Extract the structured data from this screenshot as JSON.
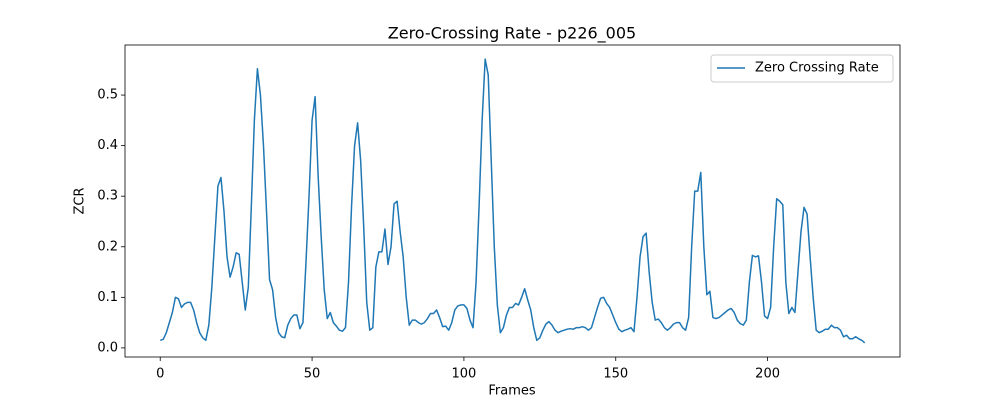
{
  "chart_data": {
    "type": "line",
    "title": "Zero-Crossing Rate - p226_005",
    "x_label": "Frames",
    "y_label": "ZCR",
    "x": [
      0,
      1,
      2,
      3,
      4,
      5,
      6,
      7,
      8,
      9,
      10,
      11,
      12,
      13,
      14,
      15,
      16,
      17,
      18,
      19,
      20,
      21,
      22,
      23,
      24,
      25,
      26,
      27,
      28,
      29,
      30,
      31,
      32,
      33,
      34,
      35,
      36,
      37,
      38,
      39,
      40,
      41,
      42,
      43,
      44,
      45,
      46,
      47,
      48,
      49,
      50,
      51,
      52,
      53,
      54,
      55,
      56,
      57,
      58,
      59,
      60,
      61,
      62,
      63,
      64,
      65,
      66,
      67,
      68,
      69,
      70,
      71,
      72,
      73,
      74,
      75,
      76,
      77,
      78,
      79,
      80,
      81,
      82,
      83,
      84,
      85,
      86,
      87,
      88,
      89,
      90,
      91,
      92,
      93,
      94,
      95,
      96,
      97,
      98,
      99,
      100,
      101,
      102,
      103,
      104,
      105,
      106,
      107,
      108,
      109,
      110,
      111,
      112,
      113,
      114,
      115,
      116,
      117,
      118,
      119,
      120,
      121,
      122,
      123,
      124,
      125,
      126,
      127,
      128,
      129,
      130,
      131,
      132,
      133,
      134,
      135,
      136,
      137,
      138,
      139,
      140,
      141,
      142,
      143,
      144,
      145,
      146,
      147,
      148,
      149,
      150,
      151,
      152,
      153,
      154,
      155,
      156,
      157,
      158,
      159,
      160,
      161,
      162,
      163,
      164,
      165,
      166,
      167,
      168,
      169,
      170,
      171,
      172,
      173,
      174,
      175,
      176,
      177,
      178,
      179,
      180,
      181,
      182,
      183,
      184,
      185,
      186,
      187,
      188,
      189,
      190,
      191,
      192,
      193,
      194,
      195,
      196,
      197,
      198,
      199,
      200,
      201,
      202,
      203,
      204,
      205,
      206,
      207,
      208,
      209,
      210,
      211,
      212,
      213,
      214,
      215,
      216,
      217,
      218,
      219,
      220,
      221,
      222,
      223,
      224,
      225,
      226,
      227,
      228,
      229,
      230,
      231,
      232
    ],
    "series": [
      {
        "name": "Zero Crossing Rate",
        "color": "#1f77b4",
        "values": [
          0.015,
          0.017,
          0.03,
          0.05,
          0.07,
          0.1,
          0.097,
          0.08,
          0.087,
          0.09,
          0.09,
          0.075,
          0.05,
          0.03,
          0.02,
          0.015,
          0.045,
          0.12,
          0.22,
          0.32,
          0.337,
          0.27,
          0.18,
          0.14,
          0.16,
          0.188,
          0.185,
          0.13,
          0.075,
          0.12,
          0.28,
          0.45,
          0.552,
          0.5,
          0.4,
          0.27,
          0.135,
          0.115,
          0.06,
          0.03,
          0.022,
          0.02,
          0.045,
          0.058,
          0.065,
          0.065,
          0.038,
          0.05,
          0.17,
          0.3,
          0.45,
          0.497,
          0.34,
          0.22,
          0.115,
          0.058,
          0.07,
          0.05,
          0.043,
          0.035,
          0.033,
          0.04,
          0.13,
          0.28,
          0.4,
          0.445,
          0.37,
          0.24,
          0.09,
          0.035,
          0.04,
          0.16,
          0.19,
          0.19,
          0.235,
          0.165,
          0.2,
          0.285,
          0.29,
          0.23,
          0.18,
          0.1,
          0.045,
          0.055,
          0.055,
          0.05,
          0.047,
          0.05,
          0.058,
          0.068,
          0.068,
          0.075,
          0.06,
          0.042,
          0.043,
          0.035,
          0.05,
          0.075,
          0.083,
          0.085,
          0.085,
          0.078,
          0.055,
          0.04,
          0.13,
          0.28,
          0.45,
          0.571,
          0.54,
          0.37,
          0.2,
          0.085,
          0.03,
          0.04,
          0.065,
          0.08,
          0.08,
          0.088,
          0.085,
          0.1,
          0.117,
          0.095,
          0.075,
          0.04,
          0.015,
          0.02,
          0.035,
          0.047,
          0.052,
          0.045,
          0.035,
          0.03,
          0.033,
          0.035,
          0.037,
          0.038,
          0.037,
          0.04,
          0.04,
          0.042,
          0.04,
          0.035,
          0.04,
          0.06,
          0.08,
          0.098,
          0.1,
          0.088,
          0.08,
          0.065,
          0.05,
          0.037,
          0.032,
          0.035,
          0.037,
          0.04,
          0.032,
          0.1,
          0.18,
          0.22,
          0.227,
          0.15,
          0.09,
          0.055,
          0.057,
          0.05,
          0.04,
          0.035,
          0.04,
          0.047,
          0.05,
          0.05,
          0.04,
          0.035,
          0.06,
          0.2,
          0.31,
          0.31,
          0.347,
          0.2,
          0.105,
          0.112,
          0.06,
          0.058,
          0.06,
          0.065,
          0.07,
          0.075,
          0.078,
          0.07,
          0.055,
          0.048,
          0.045,
          0.055,
          0.13,
          0.183,
          0.18,
          0.182,
          0.13,
          0.063,
          0.058,
          0.08,
          0.2,
          0.295,
          0.29,
          0.283,
          0.13,
          0.068,
          0.08,
          0.07,
          0.15,
          0.23,
          0.278,
          0.265,
          0.18,
          0.1,
          0.035,
          0.03,
          0.033,
          0.037,
          0.037,
          0.045,
          0.04,
          0.04,
          0.035,
          0.022,
          0.025,
          0.018,
          0.018,
          0.022,
          0.018,
          0.015,
          0.01
        ]
      }
    ],
    "xlim": [
      -11.6,
      243.6
    ],
    "ylim": [
      -0.018,
      0.599
    ],
    "xticks": [
      0,
      50,
      100,
      150,
      200
    ],
    "yticks": [
      {
        "value": 0,
        "label": "0.0"
      },
      0.1,
      0.2,
      0.3,
      0.4,
      0.5
    ],
    "legend": "upper right"
  }
}
